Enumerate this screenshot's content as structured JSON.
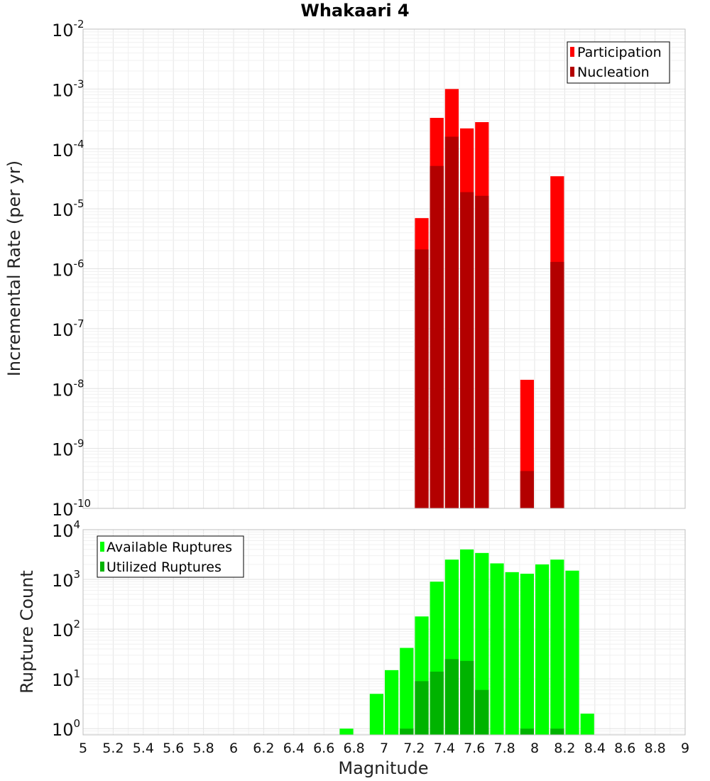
{
  "chart_data": [
    {
      "type": "bar",
      "title": "Whakaari 4",
      "ylabel": "Incremental Rate (per yr)",
      "xlabel": "",
      "yscale": "log",
      "ylim": [
        1e-10,
        0.01
      ],
      "xlim": [
        5,
        9
      ],
      "y_tick_labels": [
        {
          "base": "10",
          "exp": "-2"
        },
        {
          "base": "10",
          "exp": "-3"
        },
        {
          "base": "10",
          "exp": "-4"
        },
        {
          "base": "10",
          "exp": "-5"
        },
        {
          "base": "10",
          "exp": "-6"
        },
        {
          "base": "10",
          "exp": "-7"
        },
        {
          "base": "10",
          "exp": "-8"
        },
        {
          "base": "10",
          "exp": "-9"
        },
        {
          "base": "10",
          "exp": "-10"
        }
      ],
      "legend": {
        "position": "top-right",
        "entries": [
          "Participation",
          "Nucleation"
        ]
      },
      "bar_width": 0.1,
      "series": [
        {
          "name": "Participation",
          "color": "#ff0000",
          "x": [
            7.25,
            7.35,
            7.45,
            7.55,
            7.65,
            7.95,
            8.15
          ],
          "values": [
            7e-06,
            0.00033,
            0.001,
            0.00022,
            0.00028,
            1.4e-08,
            3.5e-05
          ]
        },
        {
          "name": "Nucleation",
          "color": "#b30000",
          "x": [
            7.25,
            7.35,
            7.45,
            7.55,
            7.65,
            7.95,
            8.15
          ],
          "values": [
            2.1e-06,
            5.2e-05,
            0.00016,
            1.9e-05,
            1.65e-05,
            4.2e-10,
            1.3e-06
          ]
        }
      ]
    },
    {
      "type": "bar",
      "title": "",
      "ylabel": "Rupture Count",
      "xlabel": "Magnitude",
      "yscale": "log",
      "ylim": [
        0.75,
        10000
      ],
      "xlim": [
        5,
        9
      ],
      "y_tick_labels": [
        {
          "base": "10",
          "exp": "4"
        },
        {
          "base": "10",
          "exp": "3"
        },
        {
          "base": "10",
          "exp": "2"
        },
        {
          "base": "10",
          "exp": "1"
        },
        {
          "base": "10",
          "exp": "0"
        }
      ],
      "x_tick_labels": [
        "5",
        "5.2",
        "5.4",
        "5.6",
        "5.8",
        "6",
        "6.2",
        "6.4",
        "6.6",
        "6.8",
        "7",
        "7.2",
        "7.4",
        "7.6",
        "7.8",
        "8",
        "8.2",
        "8.4",
        "8.6",
        "8.8",
        "9"
      ],
      "legend": {
        "position": "top-left",
        "entries": [
          "Available Ruptures",
          "Utilized Ruptures"
        ]
      },
      "bar_width": 0.1,
      "series": [
        {
          "name": "Available Ruptures",
          "color": "#00ff00",
          "x": [
            6.75,
            6.95,
            7.05,
            7.15,
            7.25,
            7.35,
            7.45,
            7.55,
            7.65,
            7.75,
            7.85,
            7.95,
            8.05,
            8.15,
            8.25,
            8.35
          ],
          "values": [
            1,
            5,
            15,
            42,
            180,
            900,
            2500,
            4000,
            3400,
            2100,
            1400,
            1300,
            2000,
            2500,
            1500,
            2
          ]
        },
        {
          "name": "Utilized Ruptures",
          "color": "#00b300",
          "x": [
            7.15,
            7.25,
            7.35,
            7.45,
            7.55,
            7.65,
            7.95,
            8.15
          ],
          "values": [
            1,
            9,
            14,
            25,
            23,
            6,
            1,
            1
          ]
        }
      ]
    }
  ]
}
